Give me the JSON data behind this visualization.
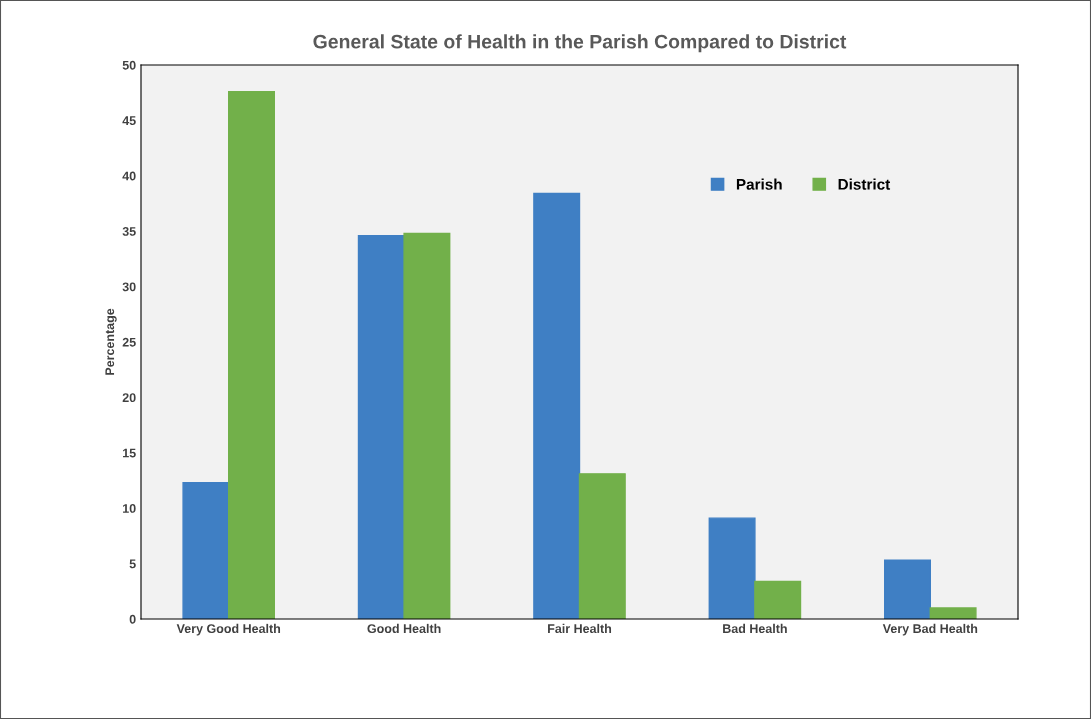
{
  "chart_data": {
    "type": "bar",
    "title": "General State of Health in the Parish Compared to District",
    "ylabel": "Percentage",
    "categories": [
      "Very Good Health",
      "Good Health",
      "Fair Health",
      "Bad Health",
      "Very Bad Health"
    ],
    "series": [
      {
        "name": "Parish",
        "color": "#3f7fc4",
        "values": [
          12.3,
          34.6,
          38.4,
          9.1,
          5.3
        ]
      },
      {
        "name": "District",
        "color": "#72b04a",
        "values": [
          47.6,
          34.8,
          13.1,
          3.4,
          1.0
        ]
      }
    ],
    "ylim": [
      0,
      50
    ],
    "yticks": [
      0,
      5,
      10,
      15,
      20,
      25,
      30,
      35,
      40,
      45,
      50
    ],
    "grid": false,
    "legend": "top right"
  }
}
